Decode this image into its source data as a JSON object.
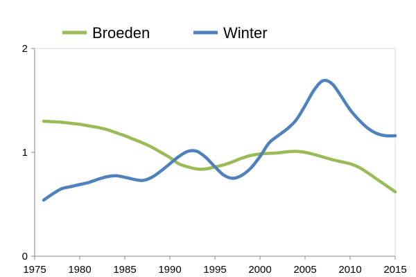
{
  "chart_data": {
    "type": "line",
    "title": "",
    "xlabel": "",
    "ylabel": "",
    "xlim": [
      1975,
      2015
    ],
    "ylim": [
      0,
      2
    ],
    "xticks": [
      "1975",
      "1980",
      "1985",
      "1990",
      "1995",
      "2000",
      "2005",
      "2010",
      "2015"
    ],
    "yticks": [
      "0",
      "1",
      "2"
    ],
    "grid": false,
    "legend_position": "top",
    "series": [
      {
        "name": "Broeden",
        "color": "#9BBB59",
        "x": [
          1976,
          1977,
          1978,
          1979,
          1980,
          1981,
          1982,
          1983,
          1984,
          1985,
          1986,
          1987,
          1988,
          1989,
          1990,
          1991,
          1992,
          1993,
          1994,
          1995,
          1996,
          1997,
          1998,
          1999,
          2000,
          2001,
          2002,
          2003,
          2004,
          2005,
          2006,
          2007,
          2008,
          2009,
          2010,
          2011,
          2012,
          2013,
          2014,
          2015
        ],
        "y": [
          1.3,
          1.295,
          1.29,
          1.28,
          1.27,
          1.255,
          1.24,
          1.22,
          1.19,
          1.16,
          1.125,
          1.09,
          1.05,
          1.0,
          0.95,
          0.89,
          0.86,
          0.84,
          0.84,
          0.86,
          0.88,
          0.91,
          0.945,
          0.97,
          0.985,
          0.99,
          0.995,
          1.005,
          1.01,
          1.0,
          0.98,
          0.955,
          0.93,
          0.91,
          0.89,
          0.855,
          0.8,
          0.74,
          0.68,
          0.62
        ]
      },
      {
        "name": "Winter",
        "color": "#4F81BD",
        "x": [
          1976,
          1977,
          1978,
          1979,
          1980,
          1981,
          1982,
          1983,
          1984,
          1985,
          1986,
          1987,
          1988,
          1989,
          1990,
          1991,
          1992,
          1993,
          1994,
          1995,
          1996,
          1997,
          1998,
          1999,
          2000,
          2001,
          2002,
          2003,
          2004,
          2005,
          2006,
          2007,
          2008,
          2009,
          2010,
          2011,
          2012,
          2013,
          2014,
          2015
        ],
        "y": [
          0.54,
          0.6,
          0.65,
          0.67,
          0.69,
          0.71,
          0.74,
          0.765,
          0.775,
          0.76,
          0.74,
          0.73,
          0.76,
          0.82,
          0.89,
          0.96,
          1.01,
          1.01,
          0.95,
          0.86,
          0.78,
          0.75,
          0.78,
          0.85,
          0.96,
          1.09,
          1.16,
          1.225,
          1.31,
          1.45,
          1.6,
          1.69,
          1.66,
          1.54,
          1.41,
          1.31,
          1.23,
          1.18,
          1.16,
          1.16
        ]
      }
    ]
  }
}
